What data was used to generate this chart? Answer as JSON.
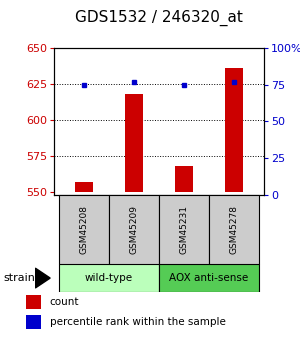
{
  "title": "GDS1532 / 246320_at",
  "samples": [
    "GSM45208",
    "GSM45209",
    "GSM45231",
    "GSM45278"
  ],
  "count_values": [
    557,
    618,
    568,
    636
  ],
  "percentile_values": [
    75,
    77,
    75,
    77
  ],
  "ylim_left": [
    548,
    650
  ],
  "ylim_right": [
    0,
    100
  ],
  "yticks_left": [
    550,
    575,
    600,
    625,
    650
  ],
  "yticks_right": [
    0,
    25,
    50,
    75,
    100
  ],
  "yticklabels_right": [
    "0",
    "25",
    "50",
    "75",
    "100%"
  ],
  "bar_color": "#cc0000",
  "dot_color": "#0000cc",
  "bar_bottom": 550,
  "groups": [
    {
      "label": "wild-type",
      "samples": [
        0,
        1
      ],
      "color": "#bbffbb"
    },
    {
      "label": "AOX anti-sense",
      "samples": [
        2,
        3
      ],
      "color": "#55cc55"
    }
  ],
  "strain_label": "strain",
  "legend_count_label": "count",
  "legend_pct_label": "percentile rank within the sample",
  "left_tick_color": "#cc0000",
  "right_tick_color": "#0000cc",
  "sample_box_color": "#cccccc",
  "title_fontsize": 11,
  "axis_fontsize": 8,
  "label_fontsize": 8
}
